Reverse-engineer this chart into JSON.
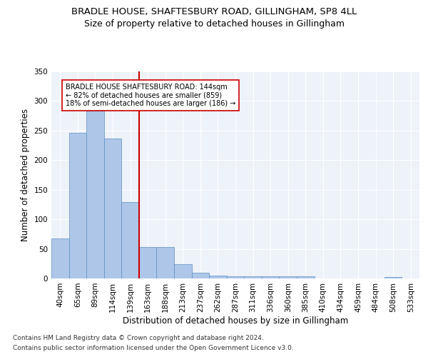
{
  "title1": "BRADLE HOUSE, SHAFTESBURY ROAD, GILLINGHAM, SP8 4LL",
  "title2": "Size of property relative to detached houses in Gillingham",
  "xlabel": "Distribution of detached houses by size in Gillingham",
  "ylabel": "Number of detached properties",
  "categories": [
    "40sqm",
    "65sqm",
    "89sqm",
    "114sqm",
    "139sqm",
    "163sqm",
    "188sqm",
    "213sqm",
    "237sqm",
    "262sqm",
    "287sqm",
    "311sqm",
    "336sqm",
    "360sqm",
    "385sqm",
    "410sqm",
    "434sqm",
    "459sqm",
    "484sqm",
    "508sqm",
    "533sqm"
  ],
  "values": [
    68,
    246,
    284,
    236,
    129,
    53,
    53,
    24,
    10,
    5,
    4,
    4,
    4,
    4,
    4,
    0,
    0,
    0,
    0,
    3,
    0
  ],
  "bar_color": "#aec6e8",
  "bar_edge_color": "#5a8fc2",
  "highlight_line_color": "#cc0000",
  "annotation_text": "BRADLE HOUSE SHAFTESBURY ROAD: 144sqm\n← 82% of detached houses are smaller (859)\n18% of semi-detached houses are larger (186) →",
  "annotation_box_color": "white",
  "annotation_box_edge_color": "#cc0000",
  "ylim": [
    0,
    350
  ],
  "yticks": [
    0,
    50,
    100,
    150,
    200,
    250,
    300,
    350
  ],
  "footer1": "Contains HM Land Registry data © Crown copyright and database right 2024.",
  "footer2": "Contains public sector information licensed under the Open Government Licence v3.0.",
  "bg_color": "#eef2f9",
  "grid_color": "#ffffff",
  "title1_fontsize": 9.5,
  "title2_fontsize": 9,
  "xlabel_fontsize": 8.5,
  "ylabel_fontsize": 8.5,
  "tick_fontsize": 7.5,
  "footer_fontsize": 6.5
}
